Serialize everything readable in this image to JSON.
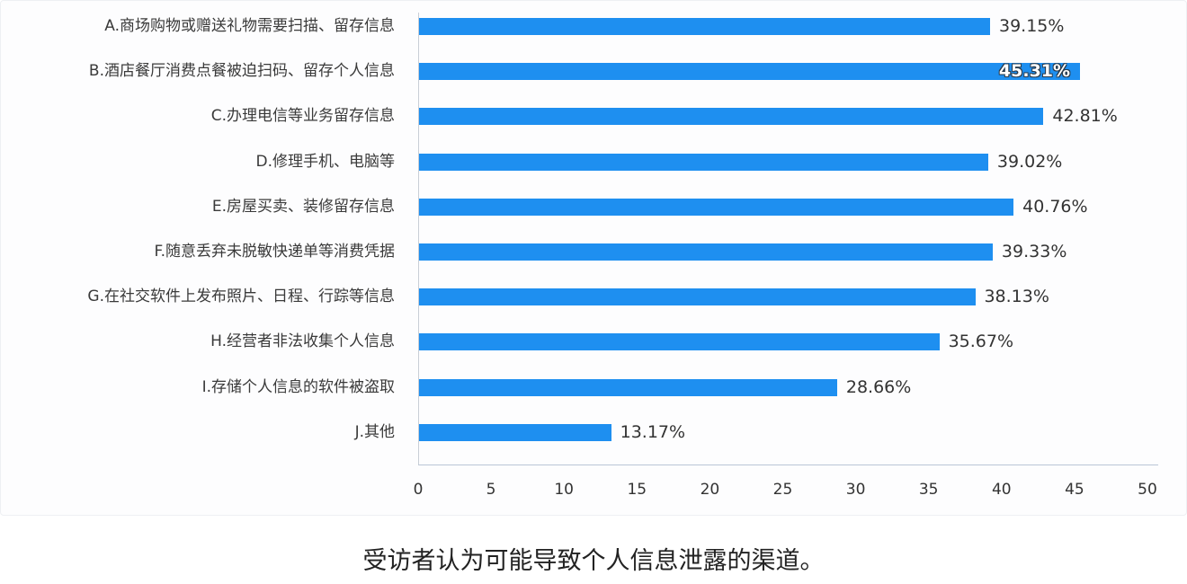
{
  "chart_data": {
    "type": "bar",
    "orientation": "horizontal",
    "title": "",
    "caption": "受访者认为可能导致个人信息泄露的渠道。",
    "xlabel": "",
    "ylabel": "",
    "xlim": [
      0,
      50
    ],
    "x_ticks": [
      0,
      5,
      10,
      15,
      20,
      25,
      30,
      35,
      40,
      45,
      50
    ],
    "grid": false,
    "legend": null,
    "bar_color": "#1e8ff0",
    "categories": [
      "A.商场购物或赠送礼物需要扫描、留存信息",
      "B.酒店餐厅消费点餐被迫扫码、留存个人信息",
      "C.办理电信等业务留存信息",
      "D.修理手机、电脑等",
      "E.房屋买卖、装修留存信息",
      "F.随意丢弃未脱敏快递单等消费凭据",
      "G.在社交软件上发布照片、日程、行踪等信息",
      "H.经营者非法收集个人信息",
      "I.存储个人信息的软件被盗取",
      "J.其他"
    ],
    "values": [
      39.15,
      45.31,
      42.81,
      39.02,
      40.76,
      39.33,
      38.13,
      35.67,
      28.66,
      13.17
    ],
    "value_labels": [
      "39.15%",
      "45.31%",
      "42.81%",
      "39.02%",
      "40.76%",
      "39.33%",
      "38.13%",
      "35.67%",
      "28.66%",
      "13.17%"
    ],
    "unit": "%"
  }
}
